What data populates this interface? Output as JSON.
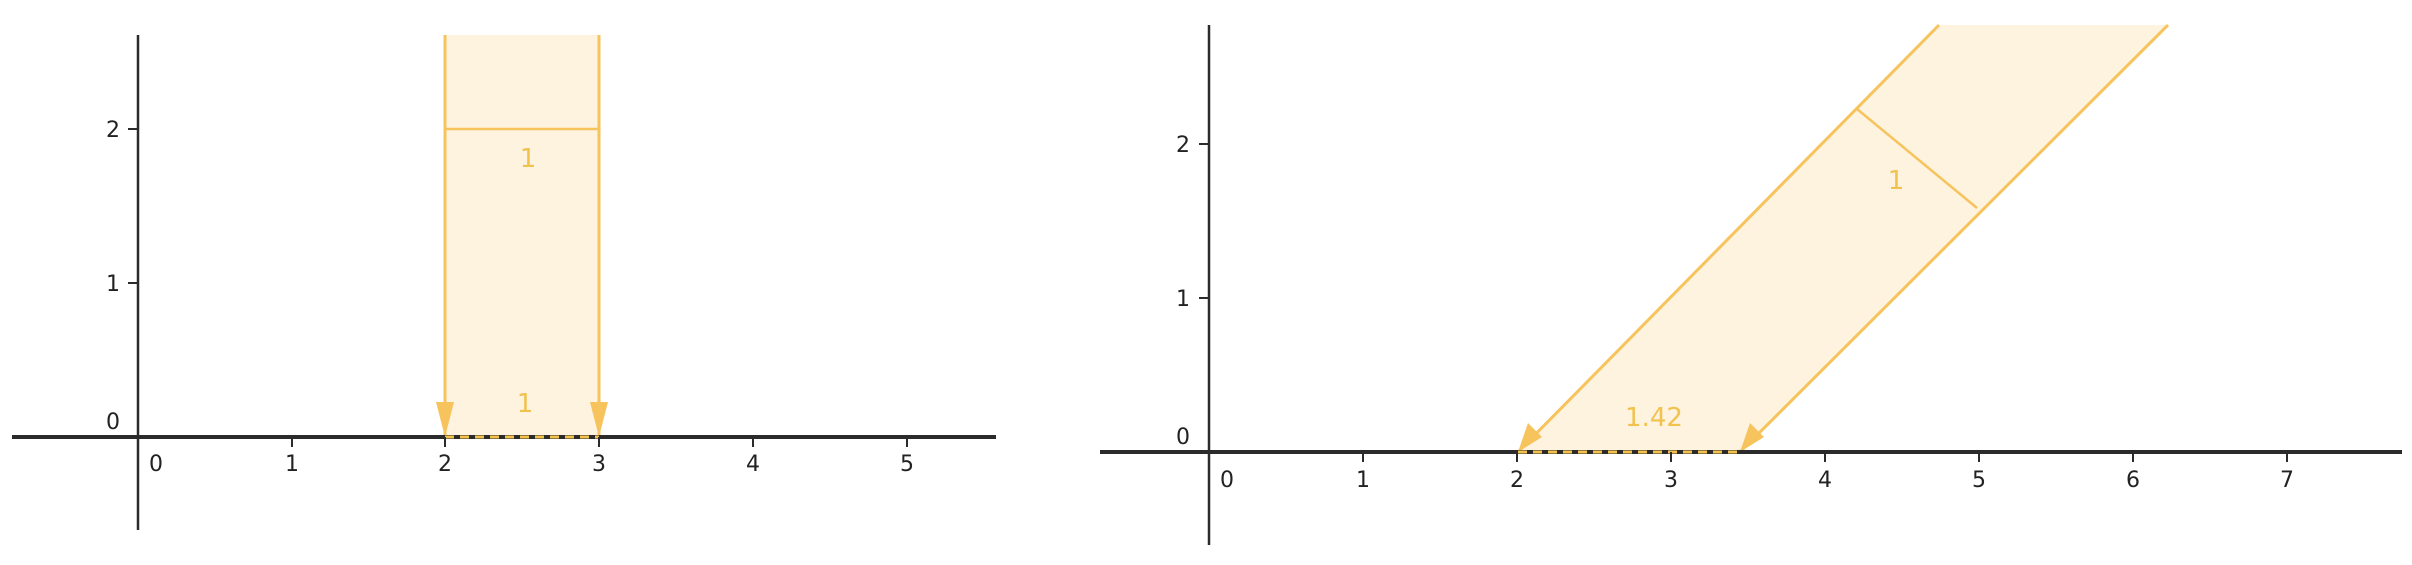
{
  "colors": {
    "axis": "#2b2b2b",
    "beam_stroke": "#f7c35c",
    "beam_fill": "#fdf3df",
    "label": "#f2c24f",
    "tick_text": "#222222"
  },
  "panels": [
    {
      "id": "left",
      "x_ticks": [
        "0",
        "1",
        "2",
        "3",
        "4",
        "5"
      ],
      "y_ticks": [
        "0",
        "1",
        "2"
      ],
      "beam_width_label": "1",
      "projection_label": "1"
    },
    {
      "id": "right",
      "x_ticks": [
        "0",
        "1",
        "2",
        "3",
        "4",
        "5",
        "6",
        "7"
      ],
      "y_ticks": [
        "0",
        "1",
        "2"
      ],
      "beam_width_label": "1",
      "projection_label": "1.42"
    }
  ]
}
